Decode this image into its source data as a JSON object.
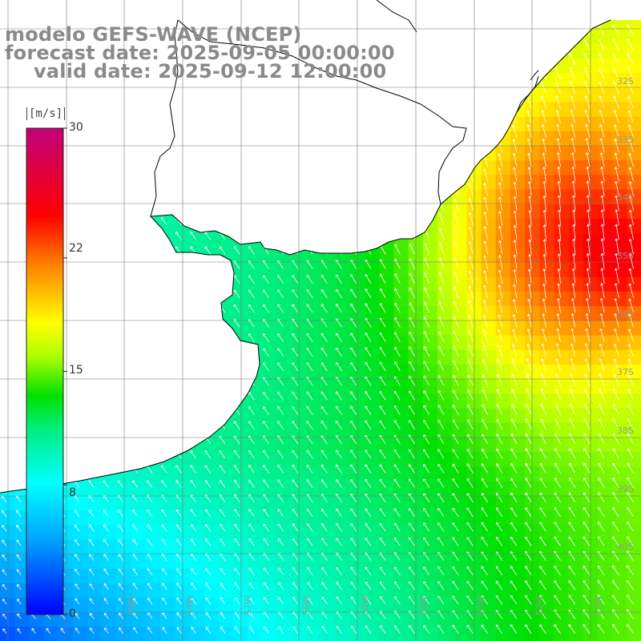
{
  "title": {
    "line1": "modelo GEFS-WAVE (NCEP)",
    "line2": "forecast date: 2025-09-05 00:00:00",
    "line3": "valid date: 2025-09-12 12:00:00"
  },
  "colorbar": {
    "unit": "[m/s]",
    "ticks": [
      "30",
      "22",
      "15",
      "8",
      "0"
    ],
    "tick_values": [
      30,
      22,
      15,
      8,
      0
    ],
    "min": 0,
    "max": 30,
    "colors": [
      "#0000ff",
      "#00aaff",
      "#00ffff",
      "#00e060",
      "#00ff00",
      "#ffff00",
      "#ff8000",
      "#ff0000",
      "#c00060"
    ]
  },
  "lat_labels": [
    "32S",
    "33S",
    "34S",
    "35S",
    "36S",
    "37S",
    "38S",
    "39S",
    "40S"
  ],
  "lon_labels": [
    "59W",
    "58W",
    "57W",
    "56W",
    "55W",
    "54W",
    "53W",
    "52W",
    "51W"
  ],
  "colors": {
    "land": "#ffffff",
    "coast": "#000000",
    "grid": "#888888",
    "arrows": "#ffffff",
    "title": "#8a8a8a"
  }
}
